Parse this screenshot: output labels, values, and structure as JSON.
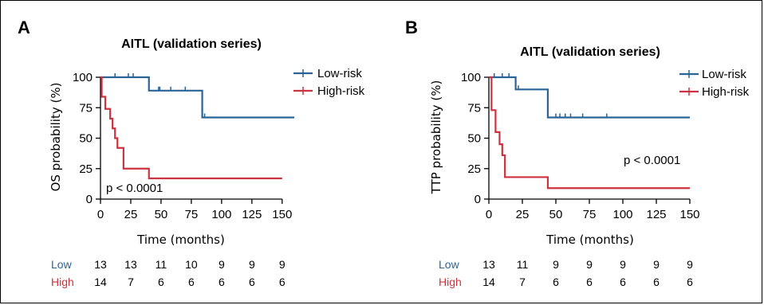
{
  "colors": {
    "low": "#2a6496",
    "high": "#cc3340"
  },
  "chart_data": [
    {
      "panel": "A",
      "type": "line",
      "title": "AITL (validation series)",
      "xlabel": "Time (months)",
      "ylabel": "OS probability (%)",
      "xlim": [
        0,
        160
      ],
      "ylim": [
        0,
        100
      ],
      "xticks": [
        0,
        25,
        50,
        75,
        100,
        125,
        150
      ],
      "yticks": [
        0,
        25,
        50,
        75,
        100
      ],
      "legend": {
        "position": "top-right",
        "entries": [
          "Low-risk",
          "High-risk"
        ]
      },
      "pvalue": "p < 0.0001",
      "series": [
        {
          "name": "Low-risk",
          "color": "#2a6496",
          "x": [
            0,
            40,
            84,
            160
          ],
          "y": [
            100,
            89,
            67,
            67
          ],
          "censor_x": [
            12,
            23,
            27,
            48,
            49,
            58,
            70,
            86
          ],
          "censor_y": [
            100,
            100,
            100,
            89,
            89,
            89,
            89,
            67
          ]
        },
        {
          "name": "High-risk",
          "color": "#cc3340",
          "x": [
            0,
            1,
            4,
            8,
            10,
            12,
            14,
            19,
            40,
            150
          ],
          "y": [
            100,
            84,
            74,
            66,
            58,
            50,
            42,
            25,
            17,
            17
          ],
          "censor_x": [
            40
          ],
          "censor_y": [
            17
          ]
        }
      ],
      "risk_table": {
        "rows": [
          {
            "label": "Low",
            "values": [
              "13",
              "13",
              "11",
              "10",
              "9",
              "9",
              "9"
            ]
          },
          {
            "label": "High",
            "values": [
              "14",
              "7",
              "6",
              "6",
              "6",
              "6",
              "6"
            ]
          }
        ]
      }
    },
    {
      "panel": "B",
      "type": "line",
      "title": "AITL (validation series)",
      "xlabel": "Time (months)",
      "ylabel": "TTP probability (%)",
      "xlim": [
        0,
        150
      ],
      "ylim": [
        0,
        100
      ],
      "xticks": [
        0,
        25,
        50,
        75,
        100,
        125,
        150
      ],
      "yticks": [
        0,
        25,
        50,
        75,
        100
      ],
      "legend": {
        "position": "top-right",
        "entries": [
          "Low-risk",
          "High-risk"
        ]
      },
      "pvalue": "p < 0.0001",
      "series": [
        {
          "name": "Low-risk",
          "color": "#2a6496",
          "x": [
            0,
            20,
            44,
            150
          ],
          "y": [
            100,
            90,
            67,
            67
          ],
          "censor_x": [
            4,
            10,
            15,
            22,
            50,
            53,
            57,
            61,
            70,
            88
          ],
          "censor_y": [
            100,
            100,
            100,
            90,
            67,
            67,
            67,
            67,
            67,
            67
          ]
        },
        {
          "name": "High-risk",
          "color": "#cc3340",
          "x": [
            0,
            2,
            5,
            8,
            10,
            12,
            44,
            150
          ],
          "y": [
            100,
            73,
            55,
            45,
            36,
            18,
            9,
            9
          ],
          "censor_x": [],
          "censor_y": []
        }
      ],
      "risk_table": {
        "rows": [
          {
            "label": "Low",
            "values": [
              "13",
              "11",
              "9",
              "9",
              "9",
              "9",
              "9"
            ]
          },
          {
            "label": "High",
            "values": [
              "14",
              "7",
              "6",
              "6",
              "6",
              "6",
              "6"
            ]
          }
        ]
      }
    }
  ]
}
